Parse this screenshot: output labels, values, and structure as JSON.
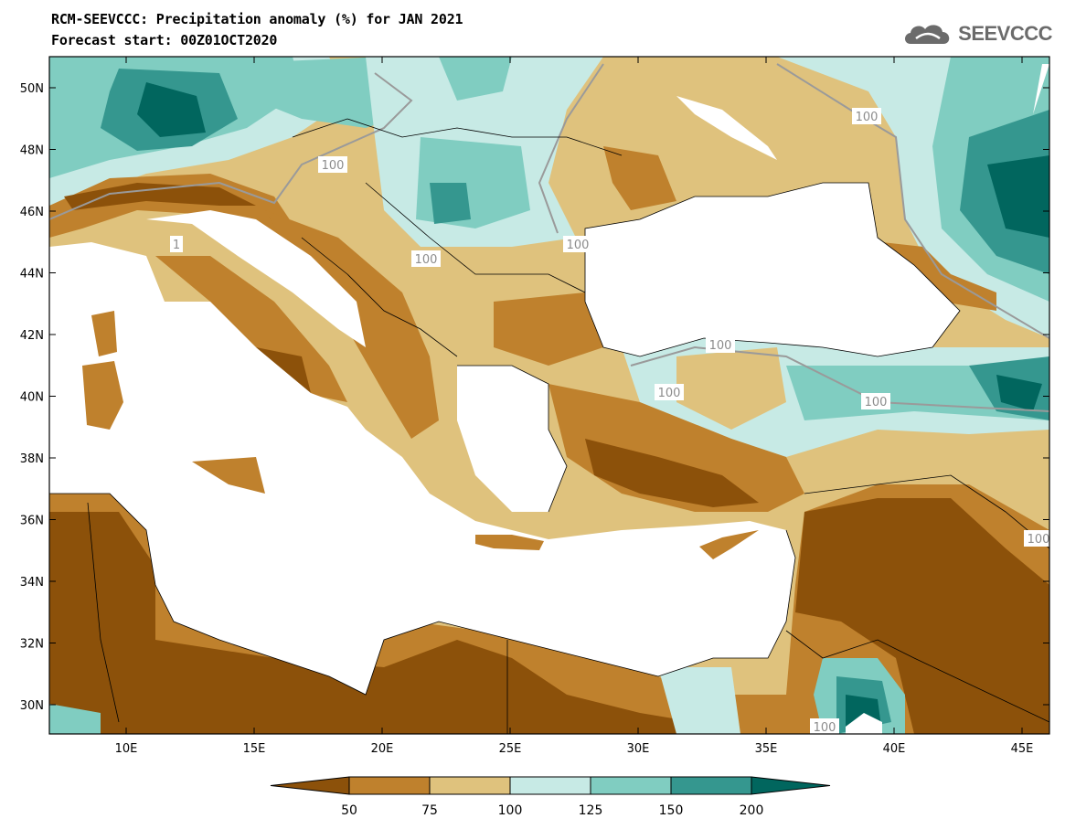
{
  "header": {
    "title_line1": "RCM-SEEVCCC: Precipitation anomaly (%) for JAN 2021",
    "title_line2": "Forecast start: 00Z01OCT2020"
  },
  "logo": {
    "text": "SEEVCCC",
    "icon": "cloud-logo-icon"
  },
  "map": {
    "lon_ticks": [
      "10E",
      "15E",
      "20E",
      "25E",
      "30E",
      "35E",
      "40E",
      "45E"
    ],
    "lat_ticks": [
      "50N",
      "48N",
      "46N",
      "44N",
      "42N",
      "40N",
      "38N",
      "36N",
      "34N",
      "32N",
      "30N"
    ],
    "contour_labels": [
      "100",
      "100",
      "100",
      "100",
      "100",
      "100",
      "100",
      "100",
      "100",
      "100",
      "1"
    ],
    "colors": {
      "below_50": "#8c510a",
      "50_75": "#bf812d",
      "75_100": "#dfc27d",
      "100_125": "#c7eae5",
      "125_150": "#80cdc1",
      "150_200": "#35978f",
      "above_200": "#01665e",
      "sea": "#ffffff"
    }
  },
  "colorbar": {
    "labels": [
      "50",
      "75",
      "100",
      "125",
      "150",
      "200"
    ],
    "colors": [
      "#8c510a",
      "#bf812d",
      "#dfc27d",
      "#c7eae5",
      "#80cdc1",
      "#35978f",
      "#01665e"
    ]
  }
}
